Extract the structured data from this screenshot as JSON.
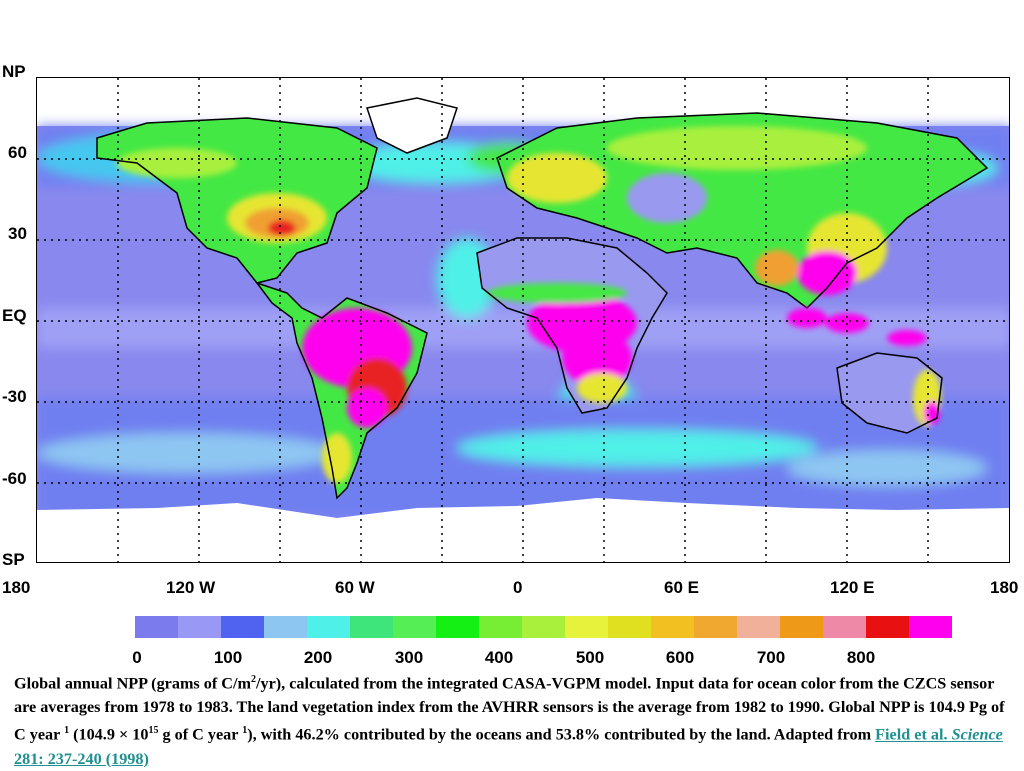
{
  "map": {
    "y_axis": [
      "NP",
      "60",
      "30",
      "EQ",
      "-30",
      "-60",
      "SP"
    ],
    "x_axis": [
      "180",
      "120 W",
      "60 W",
      "0",
      "60 E",
      "120 E",
      "180"
    ]
  },
  "legend": {
    "colors": [
      "#ffffff",
      "#7b7bee",
      "#9999f5",
      "#4f62f0",
      "#8ec6f2",
      "#4ff0e8",
      "#3ee57a",
      "#55ee55",
      "#14f014",
      "#77ee33",
      "#a8f03c",
      "#e6f23c",
      "#e0e020",
      "#f2c020",
      "#f0a830",
      "#f0b09a",
      "#ee9a18",
      "#ee8aa8",
      "#e81010",
      "#ff00ee"
    ],
    "ticks": [
      "0",
      "100",
      "200",
      "300",
      "400",
      "500",
      "600",
      "700",
      "800"
    ]
  },
  "caption": {
    "part1": "Global annual NPP (grams of C/m",
    "sup1": "2",
    "part2": "/yr), calculated from the integrated CASA-VGPM model. Input data for ocean color from the CZCS sensor are averages from 1978 to 1983. The land vegetation index from the AVHRR sensors is the average from 1982 to 1990. Global NPP is 104.9 Pg of C year",
    "sup2": "1",
    "part3": " (104.9 × 10",
    "sup3": "15",
    "part4": " g of C year",
    "sup4": "1",
    "part5": "), with 46.2% contributed by the oceans and 53.8% contributed by the land. Adapted from ",
    "link_part1": "Field et al. ",
    "link_italic": "Science",
    "link_part2": " 281: 237-240 (1998)"
  },
  "colors": {
    "ocean_low": "#8888ee",
    "ocean_mid": "#9fa0f5",
    "ocean_band": "#6f7ff0",
    "land_green": "#44e844",
    "land_yellow": "#e6e630",
    "land_orange": "#f0a030",
    "land_red": "#e82020",
    "land_magenta": "#ff00ee",
    "desert": "#9999f0",
    "ice": "#ffffff"
  }
}
